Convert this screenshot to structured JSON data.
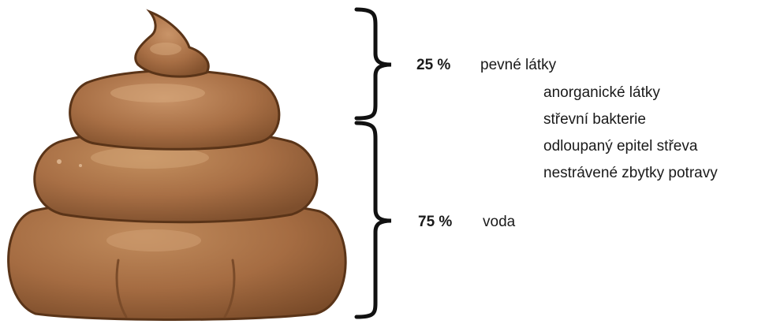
{
  "solids": {
    "percent": "25 %",
    "label": "pevné látky",
    "components": [
      "anorganické látky",
      "střevní bakterie",
      "odloupaný epitel střeva",
      "nestrávené zbytky potravy"
    ]
  },
  "water": {
    "percent": "75 %",
    "label": "voda"
  },
  "colors": {
    "poop_base": "#a86f45",
    "poop_light": "#c99468",
    "poop_shadow": "#7e4f2d",
    "outline": "#5a3418",
    "brace": "#111111",
    "text": "#1a1a1a"
  }
}
